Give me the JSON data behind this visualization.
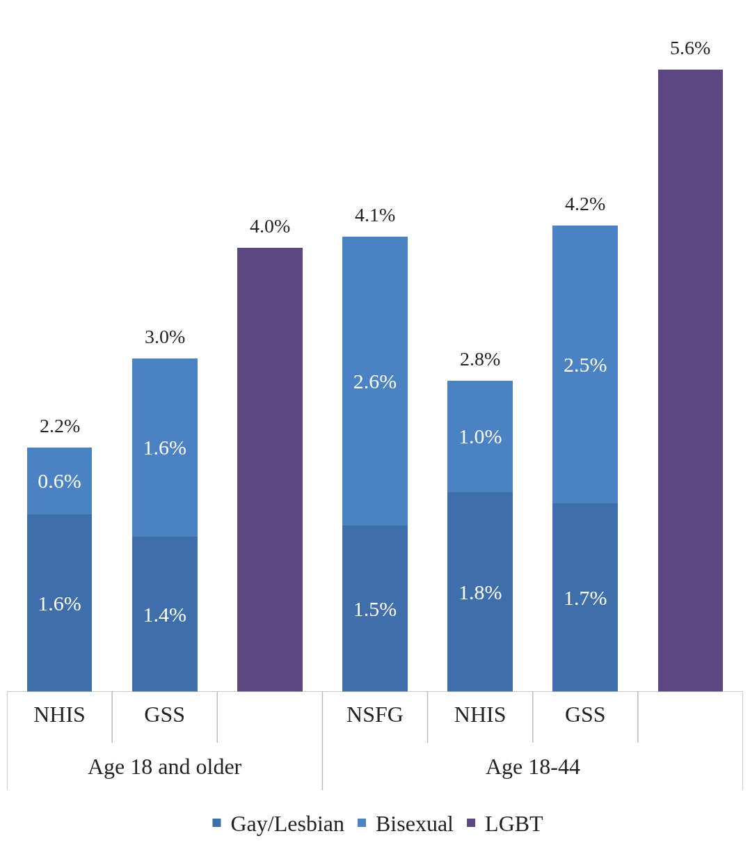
{
  "chart_data": {
    "type": "bar",
    "stacked": true,
    "categories": [
      "NHIS",
      "GSS",
      null,
      "NSFG",
      "NHIS",
      "GSS",
      null
    ],
    "series": [
      {
        "name": "Gay/Lesbian",
        "color": "#3f6fab",
        "values": [
          1.6,
          1.4,
          null,
          1.5,
          1.8,
          1.7,
          null
        ],
        "value_labels": [
          "1.6%",
          "1.4%",
          null,
          "1.5%",
          "1.8%",
          "1.7%",
          null
        ]
      },
      {
        "name": "Bisexual",
        "color": "#4b82c3",
        "values": [
          0.6,
          1.6,
          null,
          2.6,
          1.0,
          2.5,
          null
        ],
        "value_labels": [
          "0.6%",
          "1.6%",
          null,
          "2.6%",
          "1.0%",
          "2.5%",
          null
        ]
      },
      {
        "name": "LGBT",
        "color": "#5d4780",
        "values": [
          null,
          null,
          4.0,
          null,
          null,
          null,
          5.6
        ]
      }
    ],
    "totals": [
      "2.2%",
      "3.0%",
      "4.0%",
      "4.1%",
      "2.8%",
      "4.2%",
      "5.6%"
    ],
    "annotations": [
      "Age 18 and older",
      "Age 18-44"
    ],
    "legend": "bottom"
  }
}
